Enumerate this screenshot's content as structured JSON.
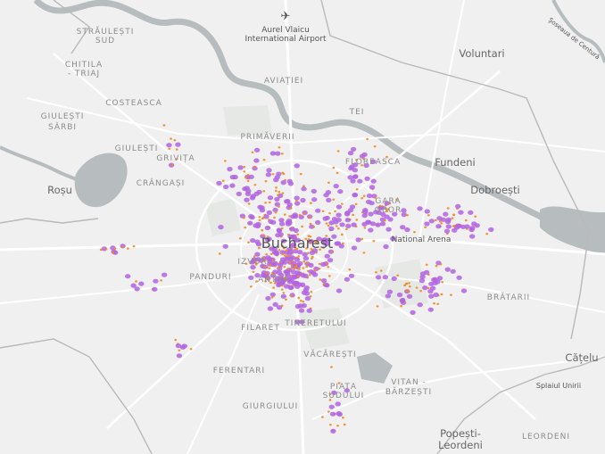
{
  "map": {
    "labels": [
      "Aurel Vlaicu",
      "International Airport",
      "STRĂULEȘTI",
      "SUD",
      "Voluntari",
      "Șoseaua de Centură",
      "CHITILA",
      "- TRIAJ",
      "AVIAȚIEI",
      "COSTEASCA",
      "GIULEȘTI",
      "SÂRBI",
      "TEI",
      "PRIMĂVERII",
      "GIULEȘTI",
      "GRIVIȚA",
      "FLOREASCA",
      "Fundeni",
      "Dobroești",
      "Roșu",
      "CRÂNGAȘI",
      "GARA",
      "OBOR",
      "Bucharest",
      "National Arena",
      "IZVOR",
      "PANDURI",
      "ANTIM",
      "BRĂTARII",
      "TINERETULUI",
      "FILARET",
      "VĂCĂREȘTI",
      "FERENTARI",
      "PIAȚA",
      "SUDULUI",
      "VITAN -",
      "BĂRZEȘTI",
      "GIURGIULUI",
      "Splaiul Unirii",
      "Cățelu",
      "Popești-",
      "Leordeni",
      "LEORDENI"
    ]
  }
}
